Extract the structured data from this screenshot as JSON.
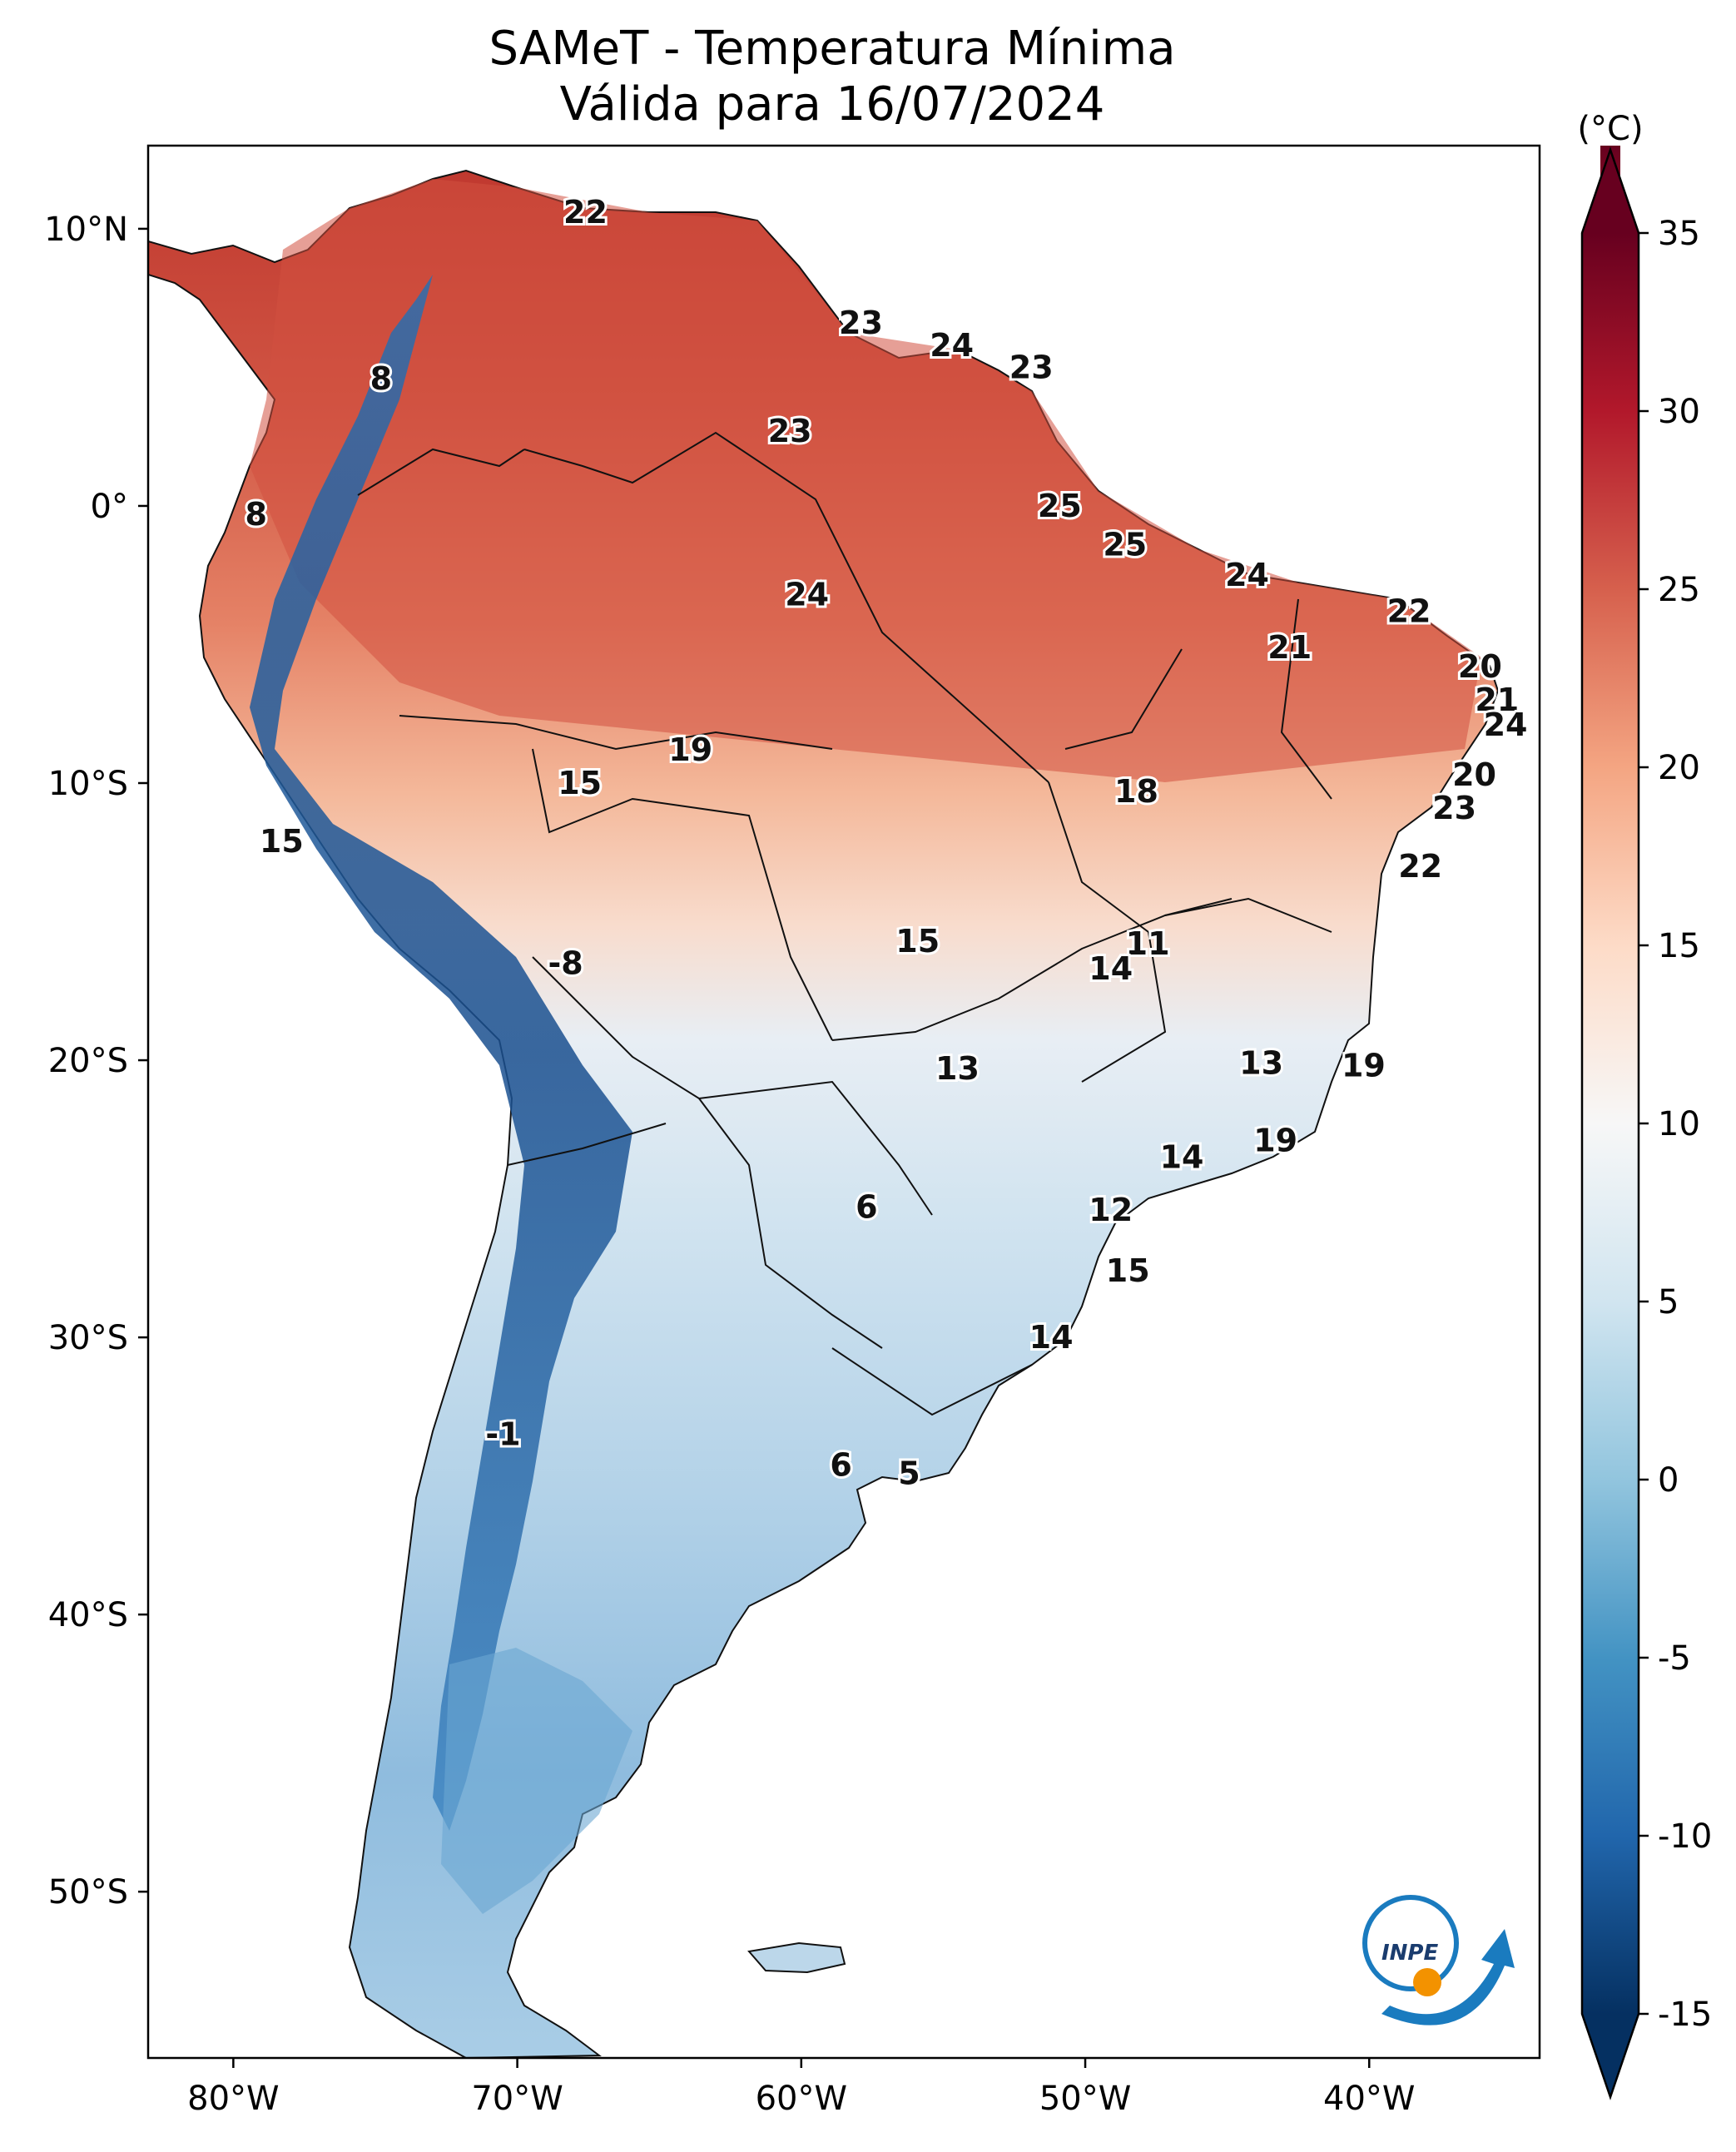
{
  "title": {
    "line1": "SAMeT - Temperatura Mínima",
    "line2": "Válida para 16/07/2024"
  },
  "axes": {
    "lat_ticks": [
      "10°N",
      "0°",
      "10°S",
      "20°S",
      "30°S",
      "40°S",
      "50°S"
    ],
    "lon_ticks": [
      "80°W",
      "70°W",
      "60°W",
      "50°W",
      "40°W"
    ],
    "lat_values": [
      10,
      0,
      -10,
      -20,
      -30,
      -40,
      -50
    ],
    "lon_values": [
      -80,
      -70,
      -60,
      -50,
      -40
    ],
    "lon_range": [
      -83,
      -34
    ],
    "lat_range": [
      -56,
      13
    ]
  },
  "colorbar": {
    "unit": "(°C)",
    "ticks": [
      "35",
      "30",
      "25",
      "20",
      "15",
      "10",
      "5",
      "0",
      "-5",
      "-10",
      "-15"
    ],
    "tick_values": [
      35,
      30,
      25,
      20,
      15,
      10,
      5,
      0,
      -5,
      -10,
      -15
    ],
    "range": [
      -15,
      35
    ],
    "colormap": "RdBu_r",
    "extend": "both",
    "colors": [
      "#053061",
      "#2166ac",
      "#4393c3",
      "#92c5de",
      "#d1e5f0",
      "#f7f7f7",
      "#fddbc7",
      "#f4a582",
      "#d6604d",
      "#b2182b",
      "#67001f"
    ]
  },
  "logo": {
    "text": "INPE",
    "colors": {
      "blue": "#1a7bbf",
      "orange": "#f39200"
    }
  },
  "temperature_labels": [
    {
      "text": "22",
      "lon": -67.6,
      "lat": 10.6
    },
    {
      "text": "8",
      "lon": -74.8,
      "lat": 4.6
    },
    {
      "text": "23",
      "lon": -57.9,
      "lat": 6.6
    },
    {
      "text": "24",
      "lon": -54.7,
      "lat": 5.8
    },
    {
      "text": "23",
      "lon": -51.9,
      "lat": 5.0
    },
    {
      "text": "23",
      "lon": -60.4,
      "lat": 2.7
    },
    {
      "text": "8",
      "lon": -79.2,
      "lat": -0.3
    },
    {
      "text": "25",
      "lon": -50.9,
      "lat": 0.0
    },
    {
      "text": "25",
      "lon": -48.6,
      "lat": -1.4
    },
    {
      "text": "24",
      "lon": -59.8,
      "lat": -3.2
    },
    {
      "text": "24",
      "lon": -44.3,
      "lat": -2.5
    },
    {
      "text": "22",
      "lon": -38.6,
      "lat": -3.8
    },
    {
      "text": "21",
      "lon": -42.8,
      "lat": -5.1
    },
    {
      "text": "20",
      "lon": -36.1,
      "lat": -5.8
    },
    {
      "text": "21",
      "lon": -35.5,
      "lat": -7.0
    },
    {
      "text": "24",
      "lon": -35.2,
      "lat": -7.9
    },
    {
      "text": "19",
      "lon": -63.9,
      "lat": -8.8
    },
    {
      "text": "15",
      "lon": -67.8,
      "lat": -10.0
    },
    {
      "text": "20",
      "lon": -36.3,
      "lat": -9.7
    },
    {
      "text": "18",
      "lon": -48.2,
      "lat": -10.3
    },
    {
      "text": "23",
      "lon": -37.0,
      "lat": -10.9
    },
    {
      "text": "15",
      "lon": -78.3,
      "lat": -12.1
    },
    {
      "text": "22",
      "lon": -38.2,
      "lat": -13.0
    },
    {
      "text": "15",
      "lon": -55.9,
      "lat": -15.7
    },
    {
      "text": "11",
      "lon": -47.8,
      "lat": -15.8
    },
    {
      "text": "14",
      "lon": -49.1,
      "lat": -16.7
    },
    {
      "text": "-8",
      "lon": -68.3,
      "lat": -16.5
    },
    {
      "text": "13",
      "lon": -54.5,
      "lat": -20.3
    },
    {
      "text": "13",
      "lon": -43.8,
      "lat": -20.1
    },
    {
      "text": "19",
      "lon": -40.2,
      "lat": -20.2
    },
    {
      "text": "19",
      "lon": -43.3,
      "lat": -22.9
    },
    {
      "text": "14",
      "lon": -46.6,
      "lat": -23.5
    },
    {
      "text": "6",
      "lon": -57.7,
      "lat": -25.3
    },
    {
      "text": "12",
      "lon": -49.1,
      "lat": -25.4
    },
    {
      "text": "15",
      "lon": -48.5,
      "lat": -27.6
    },
    {
      "text": "14",
      "lon": -51.2,
      "lat": -30.0
    },
    {
      "text": "-1",
      "lon": -70.5,
      "lat": -33.5
    },
    {
      "text": "6",
      "lon": -58.6,
      "lat": -34.6
    },
    {
      "text": "5",
      "lon": -56.2,
      "lat": -34.9
    }
  ]
}
